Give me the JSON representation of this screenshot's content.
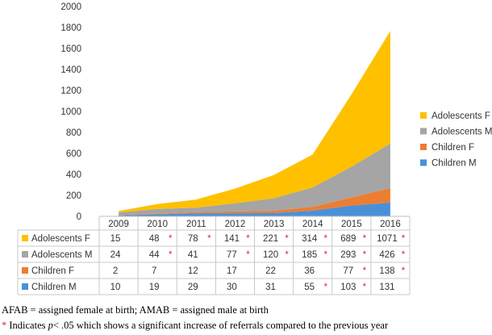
{
  "chart_data": {
    "type": "area",
    "stacked": true,
    "x": [
      "2009",
      "2010",
      "2011",
      "2012",
      "2013",
      "2014",
      "2015",
      "2016"
    ],
    "ylim": [
      0,
      2000
    ],
    "yticks": [
      "0",
      "200",
      "400",
      "600",
      "800",
      "1000",
      "1200",
      "1400",
      "1600",
      "1800",
      "2000"
    ],
    "series": [
      {
        "name": "Children M",
        "color": "#4a90d9",
        "values": [
          10,
          19,
          29,
          30,
          31,
          55,
          103,
          131
        ],
        "display": [
          "10",
          "19",
          "29",
          "30",
          "31",
          "55",
          "103",
          "131"
        ],
        "significant": [
          false,
          false,
          false,
          false,
          false,
          true,
          true,
          false
        ]
      },
      {
        "name": "Children F",
        "color": "#ed7d31",
        "values": [
          2,
          7,
          12,
          17,
          22,
          36,
          77,
          138
        ],
        "display": [
          "2",
          "7",
          "12",
          "17",
          "22",
          "36",
          "77",
          "138"
        ],
        "significant": [
          false,
          false,
          false,
          false,
          false,
          false,
          true,
          true
        ]
      },
      {
        "name": "Adolescents M",
        "color": "#a5a5a5",
        "values": [
          24,
          44,
          41,
          77,
          120,
          185,
          293,
          426
        ],
        "display": [
          "24",
          "44",
          "41",
          "77",
          "120",
          "185",
          "293",
          "426"
        ],
        "significant": [
          false,
          true,
          false,
          true,
          true,
          true,
          true,
          true
        ]
      },
      {
        "name": "Adolescents F",
        "color": "#ffc000",
        "values": [
          15,
          48,
          78,
          141,
          221,
          314,
          689,
          1071
        ],
        "display": [
          "15",
          "48",
          "78",
          "141",
          "221",
          "314",
          "689",
          "1071"
        ],
        "significant": [
          false,
          true,
          true,
          true,
          true,
          true,
          true,
          true
        ]
      }
    ],
    "legend_position": "right",
    "grid": false,
    "significance_marker": "*",
    "significance_color": "#e0262b"
  },
  "footnotes": {
    "line1": "AFAB = assigned female at birth; AMAB = assigned male at birth",
    "star": "*",
    "line2_pre": " Indicates ",
    "line2_ital": "p",
    "line2_post": "< .05 which shows a significant increase of referrals compared to the previous year"
  }
}
